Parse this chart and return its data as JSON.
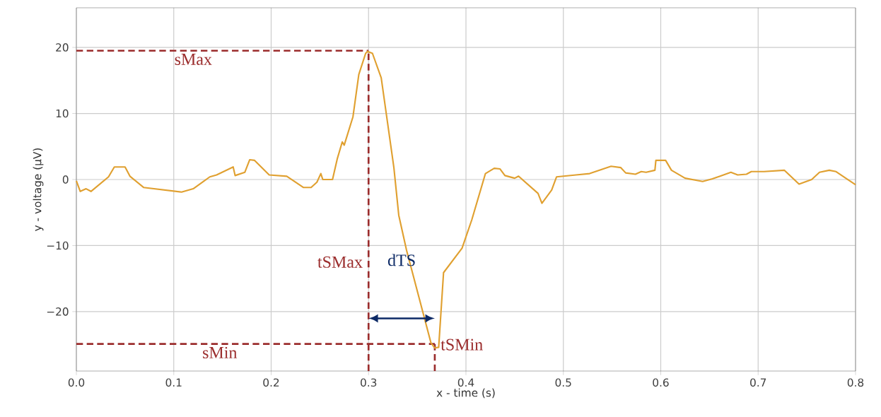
{
  "chart_data": {
    "type": "line",
    "xlabel": "x - time (s)",
    "ylabel": "y - voltage (µV)",
    "xlim": [
      0,
      0.8
    ],
    "ylim": [
      -29,
      26
    ],
    "xticks": [
      {
        "value": 0,
        "label": "0.0"
      },
      0.1,
      0.2,
      0.3,
      0.4,
      0.5,
      0.6,
      0.7,
      0.8
    ],
    "yticks": [
      {
        "value": -20,
        "label": "−20"
      },
      {
        "value": -10,
        "label": "−10"
      },
      0,
      10,
      20
    ],
    "grid": true,
    "series": [
      {
        "color": "#e0a030",
        "x": [
          0.0,
          0.004,
          0.01,
          0.015,
          0.033,
          0.039,
          0.05,
          0.055,
          0.069,
          0.108,
          0.12,
          0.137,
          0.144,
          0.161,
          0.163,
          0.173,
          0.178,
          0.183,
          0.198,
          0.216,
          0.233,
          0.241,
          0.247,
          0.251,
          0.253,
          0.263,
          0.268,
          0.273,
          0.275,
          0.284,
          0.29,
          0.297,
          0.299,
          0.304,
          0.313,
          0.326,
          0.331,
          0.339,
          0.364,
          0.368,
          0.372,
          0.377,
          0.396,
          0.406,
          0.42,
          0.429,
          0.435,
          0.44,
          0.45,
          0.454,
          0.474,
          0.478,
          0.488,
          0.493,
          0.513,
          0.527,
          0.549,
          0.559,
          0.564,
          0.574,
          0.58,
          0.585,
          0.594,
          0.595,
          0.605,
          0.611,
          0.625,
          0.643,
          0.653,
          0.672,
          0.679,
          0.688,
          0.693,
          0.706,
          0.727,
          0.742,
          0.755,
          0.763,
          0.773,
          0.78,
          0.8
        ],
        "values": [
          -0.2,
          -1.8,
          -1.4,
          -1.8,
          0.4,
          1.9,
          1.9,
          0.5,
          -1.2,
          -1.9,
          -1.4,
          0.4,
          0.7,
          1.9,
          0.6,
          1.1,
          3.0,
          2.9,
          0.7,
          0.5,
          -1.2,
          -1.2,
          -0.4,
          0.9,
          0.0,
          0.0,
          3.2,
          5.7,
          5.2,
          9.5,
          15.9,
          19.1,
          19.4,
          19.1,
          15.4,
          1.8,
          -5.4,
          -10.7,
          -24.7,
          -25.5,
          -25.4,
          -14.1,
          -10.4,
          -6.1,
          0.9,
          1.7,
          1.6,
          0.6,
          0.2,
          0.5,
          -2.1,
          -3.6,
          -1.6,
          0.4,
          0.7,
          0.9,
          2.0,
          1.8,
          1.0,
          0.8,
          1.2,
          1.1,
          1.4,
          2.9,
          2.9,
          1.4,
          0.2,
          -0.3,
          0.1,
          1.1,
          0.7,
          0.8,
          1.2,
          1.2,
          1.4,
          -0.7,
          0.0,
          1.1,
          1.4,
          1.2,
          -0.8
        ]
      }
    ],
    "ref_lines": [
      {
        "axis": "y",
        "value": 19.5,
        "label": "sMax",
        "color": "#9b2d2d",
        "line_style": "dashed"
      },
      {
        "axis": "y",
        "value": -24.9,
        "label": "sMin",
        "color": "#9b2d2d",
        "line_style": "dashed"
      },
      {
        "axis": "x",
        "value": 0.3,
        "label": "tSMax",
        "color": "#9b2d2d",
        "line_style": "dashed"
      },
      {
        "axis": "x",
        "value": 0.368,
        "label": "tSMin",
        "color": "#9b2d2d",
        "line_style": "dashed"
      }
    ],
    "annotations": [
      "dTS"
    ]
  }
}
